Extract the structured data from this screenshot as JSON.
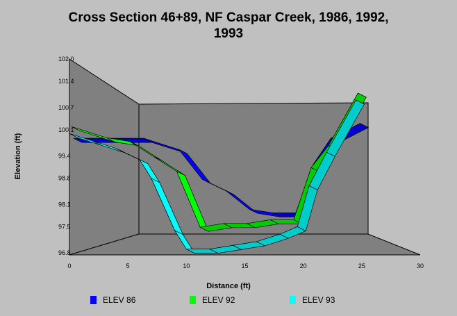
{
  "chart_data": {
    "type": "area",
    "title": "Cross Section 46+89, NF Caspar Creek, 1986, 1992, 1993",
    "xlabel": "Distance (ft)",
    "ylabel": "Elevation (ft)",
    "x_ticks": [
      "0",
      "5",
      "10",
      "15",
      "20",
      "25",
      "30"
    ],
    "y_ticks": [
      "96.8",
      "97.5",
      "98.1",
      "98.8",
      "99.4",
      "100.1",
      "100.7",
      "101.4",
      "102.0"
    ],
    "xlim": [
      0,
      30
    ],
    "ylim": [
      96.8,
      102.0
    ],
    "legend_position": "bottom",
    "series": [
      {
        "name": "ELEV 86",
        "color": "#0000ff",
        "x": [
          0,
          3,
          6,
          9,
          11,
          13,
          15,
          17,
          19,
          20.5,
          22,
          24.5
        ],
        "y": [
          99.5,
          99.5,
          99.5,
          99.2,
          98.4,
          98.1,
          97.6,
          97.5,
          97.5,
          98.8,
          99.5,
          99.9
        ]
      },
      {
        "name": "ELEV 92",
        "color": "#00ff00",
        "x": [
          0,
          3,
          5,
          7,
          9,
          11,
          13,
          15,
          17,
          19,
          20.5,
          22,
          24.5
        ],
        "y": [
          100.0,
          99.7,
          99.6,
          99.2,
          98.8,
          97.3,
          97.4,
          97.4,
          97.5,
          97.5,
          98.9,
          99.5,
          100.9
        ]
      },
      {
        "name": "ELEV 93",
        "color": "#00ffff",
        "x": [
          0,
          2,
          4,
          6,
          7,
          9,
          10,
          12,
          14,
          16,
          18,
          19.5,
          20.5,
          22,
          24.5
        ],
        "y": [
          100.0,
          99.8,
          99.6,
          99.3,
          98.8,
          97.4,
          96.9,
          96.9,
          97.0,
          97.1,
          97.3,
          97.5,
          98.6,
          99.5,
          100.9
        ]
      }
    ],
    "colors": {
      "back_wall": "#808080",
      "floor": "#808080",
      "background": "#c0c0c0"
    }
  }
}
